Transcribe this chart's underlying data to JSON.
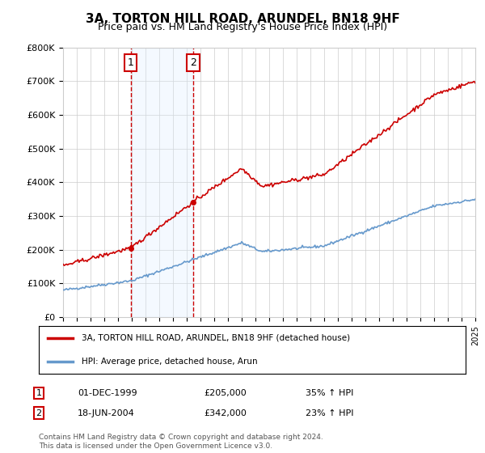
{
  "title": "3A, TORTON HILL ROAD, ARUNDEL, BN18 9HF",
  "subtitle": "Price paid vs. HM Land Registry's House Price Index (HPI)",
  "ylim": [
    0,
    800000
  ],
  "yticks": [
    0,
    100000,
    200000,
    300000,
    400000,
    500000,
    600000,
    700000,
    800000
  ],
  "ytick_labels": [
    "£0",
    "£100K",
    "£200K",
    "£300K",
    "£400K",
    "£500K",
    "£600K",
    "£700K",
    "£800K"
  ],
  "line1_color": "#cc0000",
  "line2_color": "#6699cc",
  "sale1_date": 1999.92,
  "sale1_price": 205000,
  "sale2_date": 2004.47,
  "sale2_price": 342000,
  "shaded_color": "#ddeeff",
  "dashed_color": "#cc0000",
  "legend_label1": "3A, TORTON HILL ROAD, ARUNDEL, BN18 9HF (detached house)",
  "legend_label2": "HPI: Average price, detached house, Arun",
  "table_row1": [
    "1",
    "01-DEC-1999",
    "£205,000",
    "35% ↑ HPI"
  ],
  "table_row2": [
    "2",
    "18-JUN-2004",
    "£342,000",
    "23% ↑ HPI"
  ],
  "footnote": "Contains HM Land Registry data © Crown copyright and database right 2024.\nThis data is licensed under the Open Government Licence v3.0.",
  "background_color": "#ffffff",
  "grid_color": "#cccccc",
  "xmin": 1995,
  "xmax": 2025
}
